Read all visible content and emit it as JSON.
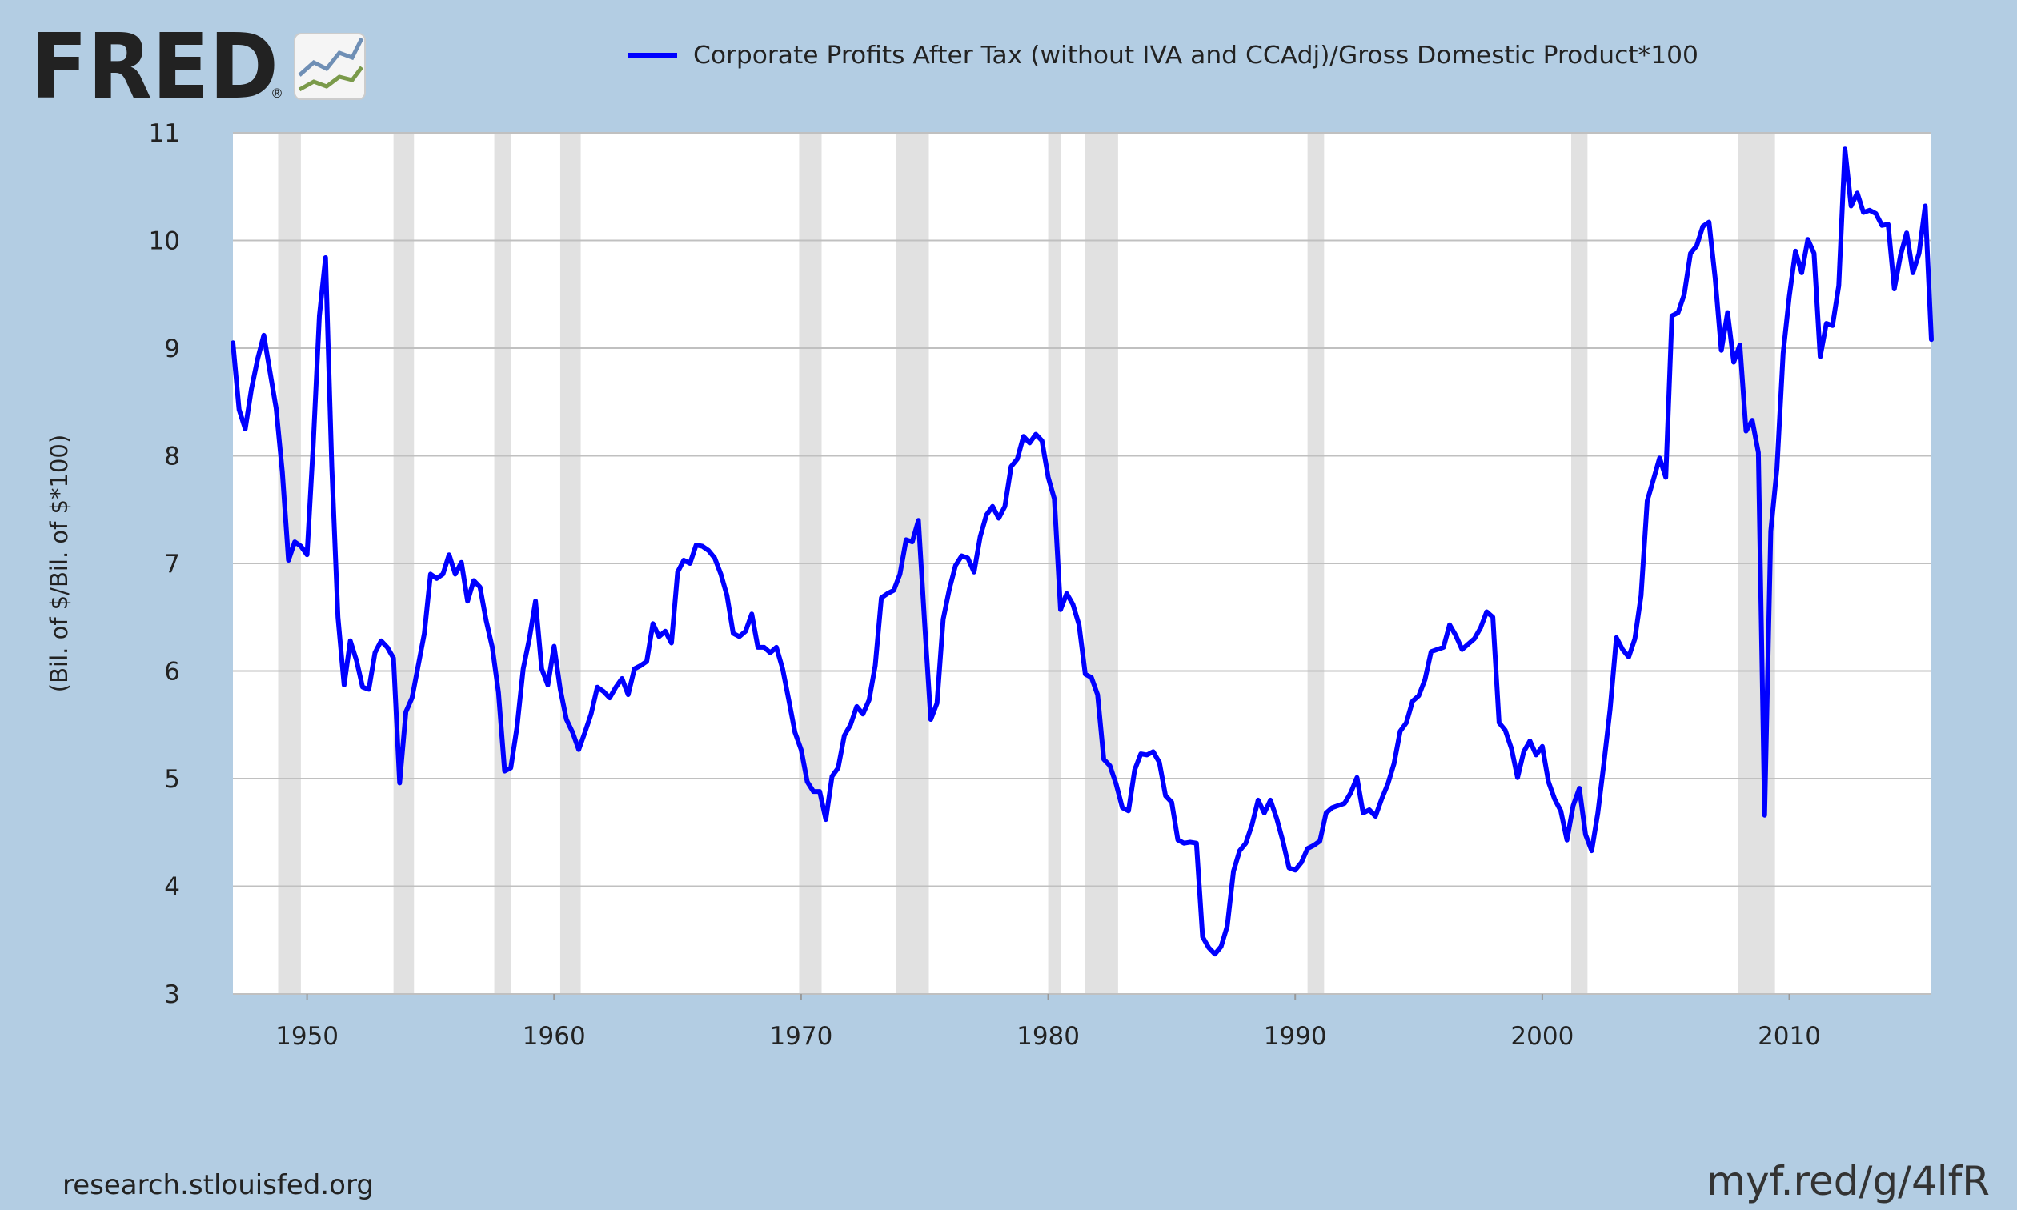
{
  "logo": {
    "text": "FRED",
    "registered": "®"
  },
  "colors": {
    "background": "#b3cde3",
    "plot_background": "#ffffff",
    "series_line": "#0000ff",
    "recession_band": "#e1e1e1",
    "gridline": "#c0c0c0",
    "text": "#222222"
  },
  "footer": {
    "source": "research.stlouisfed.org",
    "short_link": "myf.red/g/4lfR"
  },
  "chart_data": {
    "type": "line",
    "title": "",
    "xlabel": "",
    "ylabel": "(Bil. of $/Bil. of $*100)",
    "xlim": [
      1947.0,
      2015.75
    ],
    "ylim": [
      3,
      11
    ],
    "x_ticks": [
      1950,
      1960,
      1970,
      1980,
      1990,
      2000,
      2010
    ],
    "y_ticks": [
      3,
      4,
      5,
      6,
      7,
      8,
      9,
      10,
      11
    ],
    "grid": true,
    "legend_position": "top",
    "recessions": [
      [
        1948.83,
        1949.75
      ],
      [
        1953.5,
        1954.33
      ],
      [
        1957.58,
        1958.25
      ],
      [
        1960.25,
        1961.08
      ],
      [
        1969.92,
        1970.83
      ],
      [
        1973.83,
        1975.17
      ],
      [
        1980.0,
        1980.5
      ],
      [
        1981.5,
        1982.83
      ],
      [
        1990.5,
        1991.17
      ],
      [
        2001.17,
        2001.83
      ],
      [
        2007.92,
        2009.42
      ]
    ],
    "series": [
      {
        "name": "Corporate Profits After Tax (without IVA and CCAdj)/Gross Domestic Product*100",
        "x": [
          1947.0,
          1947.25,
          1947.5,
          1947.75,
          1948.0,
          1948.25,
          1948.5,
          1948.75,
          1949.0,
          1949.25,
          1949.5,
          1949.75,
          1950.0,
          1950.25,
          1950.5,
          1950.75,
          1951.0,
          1951.25,
          1951.5,
          1951.75,
          1952.0,
          1952.25,
          1952.5,
          1952.75,
          1953.0,
          1953.25,
          1953.5,
          1953.75,
          1954.0,
          1954.25,
          1954.5,
          1954.75,
          1955.0,
          1955.25,
          1955.5,
          1955.75,
          1956.0,
          1956.25,
          1956.5,
          1956.75,
          1957.0,
          1957.25,
          1957.5,
          1957.75,
          1958.0,
          1958.25,
          1958.5,
          1958.75,
          1959.0,
          1959.25,
          1959.5,
          1959.75,
          1960.0,
          1960.25,
          1960.5,
          1960.75,
          1961.0,
          1961.25,
          1961.5,
          1961.75,
          1962.0,
          1962.25,
          1962.5,
          1962.75,
          1963.0,
          1963.25,
          1963.5,
          1963.75,
          1964.0,
          1964.25,
          1964.5,
          1964.75,
          1965.0,
          1965.25,
          1965.5,
          1965.75,
          1966.0,
          1966.25,
          1966.5,
          1966.75,
          1967.0,
          1967.25,
          1967.5,
          1967.75,
          1968.0,
          1968.25,
          1968.5,
          1968.75,
          1969.0,
          1969.25,
          1969.5,
          1969.75,
          1970.0,
          1970.25,
          1970.5,
          1970.75,
          1971.0,
          1971.25,
          1971.5,
          1971.75,
          1972.0,
          1972.25,
          1972.5,
          1972.75,
          1973.0,
          1973.25,
          1973.5,
          1973.75,
          1974.0,
          1974.25,
          1974.5,
          1974.75,
          1975.0,
          1975.25,
          1975.5,
          1975.75,
          1976.0,
          1976.25,
          1976.5,
          1976.75,
          1977.0,
          1977.25,
          1977.5,
          1977.75,
          1978.0,
          1978.25,
          1978.5,
          1978.75,
          1979.0,
          1979.25,
          1979.5,
          1979.75,
          1980.0,
          1980.25,
          1980.5,
          1980.75,
          1981.0,
          1981.25,
          1981.5,
          1981.75,
          1982.0,
          1982.25,
          1982.5,
          1982.75,
          1983.0,
          1983.25,
          1983.5,
          1983.75,
          1984.0,
          1984.25,
          1984.5,
          1984.75,
          1985.0,
          1985.25,
          1985.5,
          1985.75,
          1986.0,
          1986.25,
          1986.5,
          1986.75,
          1987.0,
          1987.25,
          1987.5,
          1987.75,
          1988.0,
          1988.25,
          1988.5,
          1988.75,
          1989.0,
          1989.25,
          1989.5,
          1989.75,
          1990.0,
          1990.25,
          1990.5,
          1990.75,
          1991.0,
          1991.25,
          1991.5,
          1991.75,
          1992.0,
          1992.25,
          1992.5,
          1992.75,
          1993.0,
          1993.25,
          1993.5,
          1993.75,
          1994.0,
          1994.25,
          1994.5,
          1994.75,
          1995.0,
          1995.25,
          1995.5,
          1995.75,
          1996.0,
          1996.25,
          1996.5,
          1996.75,
          1997.0,
          1997.25,
          1997.5,
          1997.75,
          1998.0,
          1998.25,
          1998.5,
          1998.75,
          1999.0,
          1999.25,
          1999.5,
          1999.75,
          2000.0,
          2000.25,
          2000.5,
          2000.75,
          2001.0,
          2001.25,
          2001.5,
          2001.75,
          2002.0,
          2002.25,
          2002.5,
          2002.75,
          2003.0,
          2003.25,
          2003.5,
          2003.75,
          2004.0,
          2004.25,
          2004.5,
          2004.75,
          2005.0,
          2005.25,
          2005.5,
          2005.75,
          2006.0,
          2006.25,
          2006.5,
          2006.75,
          2007.0,
          2007.25,
          2007.5,
          2007.75,
          2008.0,
          2008.25,
          2008.5,
          2008.75,
          2009.0,
          2009.25,
          2009.5,
          2009.75,
          2010.0,
          2010.25,
          2010.5,
          2010.75,
          2011.0,
          2011.25,
          2011.5,
          2011.75,
          2012.0,
          2012.25,
          2012.5,
          2012.75,
          2013.0,
          2013.25,
          2013.5,
          2013.75,
          2014.0,
          2014.25,
          2014.5,
          2014.75,
          2015.0,
          2015.25,
          2015.5,
          2015.75
        ],
        "values": [
          9.05,
          8.43,
          8.25,
          8.62,
          8.9,
          9.12,
          8.78,
          8.44,
          7.85,
          7.03,
          7.2,
          7.16,
          7.08,
          8.1,
          9.3,
          9.84,
          7.9,
          6.5,
          5.87,
          6.28,
          6.1,
          5.85,
          5.83,
          6.17,
          6.28,
          6.22,
          6.12,
          4.96,
          5.62,
          5.75,
          6.05,
          6.35,
          6.9,
          6.86,
          6.9,
          7.08,
          6.9,
          7.01,
          6.65,
          6.84,
          6.78,
          6.47,
          6.22,
          5.8,
          5.07,
          5.1,
          5.48,
          6.02,
          6.3,
          6.65,
          6.02,
          5.87,
          6.23,
          5.83,
          5.55,
          5.43,
          5.27,
          5.43,
          5.6,
          5.85,
          5.81,
          5.75,
          5.85,
          5.93,
          5.78,
          6.02,
          6.05,
          6.09,
          6.44,
          6.32,
          6.37,
          6.26,
          6.92,
          7.03,
          7.0,
          7.17,
          7.16,
          7.12,
          7.05,
          6.9,
          6.7,
          6.35,
          6.32,
          6.37,
          6.53,
          6.22,
          6.22,
          6.17,
          6.22,
          6.02,
          5.73,
          5.43,
          5.27,
          4.97,
          4.88,
          4.88,
          4.62,
          5.02,
          5.1,
          5.4,
          5.5,
          5.67,
          5.6,
          5.73,
          6.05,
          6.68,
          6.72,
          6.75,
          6.9,
          7.22,
          7.2,
          7.4,
          6.45,
          5.55,
          5.7,
          6.48,
          6.76,
          6.98,
          7.07,
          7.05,
          6.92,
          7.25,
          7.45,
          7.53,
          7.42,
          7.53,
          7.9,
          7.97,
          8.18,
          8.12,
          8.2,
          8.14,
          7.8,
          7.6,
          6.57,
          6.72,
          6.62,
          6.43,
          5.97,
          5.94,
          5.78,
          5.18,
          5.12,
          4.95,
          4.73,
          4.7,
          5.08,
          5.23,
          5.22,
          5.25,
          5.15,
          4.84,
          4.78,
          4.43,
          4.4,
          4.41,
          4.4,
          3.53,
          3.43,
          3.37,
          3.44,
          3.63,
          4.14,
          4.33,
          4.4,
          4.57,
          4.8,
          4.68,
          4.8,
          4.63,
          4.42,
          4.17,
          4.15,
          4.22,
          4.35,
          4.38,
          4.42,
          4.68,
          4.73,
          4.75,
          4.77,
          4.87,
          5.01,
          4.68,
          4.71,
          4.65,
          4.81,
          4.95,
          5.14,
          5.44,
          5.52,
          5.72,
          5.77,
          5.92,
          6.18,
          6.2,
          6.22,
          6.43,
          6.33,
          6.2,
          6.25,
          6.3,
          6.4,
          6.55,
          6.5,
          5.52,
          5.45,
          5.28,
          5.01,
          5.25,
          5.35,
          5.22,
          5.3,
          4.97,
          4.81,
          4.7,
          4.43,
          4.75,
          4.91,
          4.48,
          4.33,
          4.68,
          5.15,
          5.65,
          6.31,
          6.2,
          6.13,
          6.3,
          6.7,
          7.58,
          7.78,
          7.98,
          7.8,
          9.3,
          9.33,
          9.5,
          9.88,
          9.95,
          10.13,
          10.17,
          9.65,
          8.98,
          9.33,
          8.87,
          9.03,
          8.23,
          8.33,
          8.03,
          4.66,
          7.3,
          7.88,
          8.95,
          9.48,
          9.9,
          9.7,
          10.01,
          9.88,
          8.92,
          9.23,
          9.21,
          9.58,
          10.85,
          10.32,
          10.44,
          10.26,
          10.28,
          10.25,
          10.14,
          10.15,
          9.55,
          9.86,
          10.07,
          9.7,
          9.88,
          10.32,
          9.08
        ]
      }
    ]
  }
}
